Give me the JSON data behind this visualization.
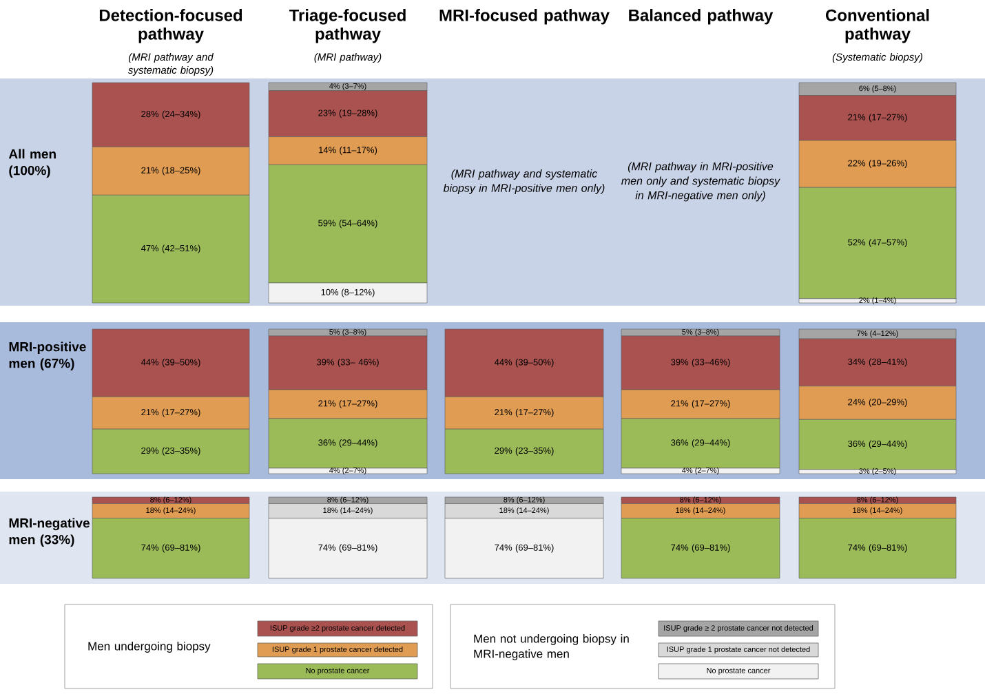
{
  "chart_data": [
    {
      "type": "bar",
      "stacked": true,
      "title": "Detection-focused pathway",
      "subtitle": "(MRI pathway and systematic biopsy)",
      "ylabel": "All men (100%)",
      "categories": [
        null
      ],
      "series": [
        {
          "color": "#9bbb59",
          "values": [
            47
          ],
          "value_labels": [
            "47% (42–51%)"
          ]
        },
        {
          "color": "#e09c52",
          "values": [
            21
          ],
          "value_labels": [
            "21% (18–25%)"
          ]
        },
        {
          "color": "#a9524f",
          "values": [
            28
          ],
          "value_labels": [
            "28% (24–34%)"
          ]
        }
      ]
    },
    {
      "type": "bar",
      "stacked": true,
      "title": "Triage-focused pathway",
      "subtitle": "(MRI pathway)",
      "categories": [
        null
      ],
      "series": [
        {
          "color": "#f2f2f2",
          "values": [
            10
          ],
          "value_labels": [
            "10% (8–12%)"
          ]
        },
        {
          "color": "#9bbb59",
          "values": [
            59
          ],
          "value_labels": [
            "59% (54–64%)"
          ]
        },
        {
          "color": "#e09c52",
          "values": [
            14
          ],
          "value_labels": [
            "14% (11–17%)"
          ]
        },
        {
          "color": "#a9524f",
          "values": [
            23
          ],
          "value_labels": [
            "23% (19–28%)"
          ]
        },
        {
          "color": "#a5a5a5",
          "values": [
            4
          ],
          "value_labels": [
            "4% (3–7%)"
          ]
        }
      ]
    },
    {
      "type": "other",
      "title": "MRI-focused pathway",
      "annotations": [
        "(MRI pathway and systematic biopsy in MRI-positive men only)"
      ]
    },
    {
      "type": "other",
      "title": "Balanced pathway",
      "annotations": [
        "(MRI pathway in MRI-positive men only and systematic biopsy in MRI-negative men only)"
      ]
    },
    {
      "type": "bar",
      "stacked": true,
      "title": "Conventional pathway",
      "subtitle": "(Systematic biopsy)",
      "categories": [
        null
      ],
      "series": [
        {
          "color": "#f2f2f2",
          "values": [
            2
          ],
          "value_labels": [
            "2% (1–4%)"
          ]
        },
        {
          "color": "#9bbb59",
          "values": [
            52
          ],
          "value_labels": [
            "52% (47–57%)"
          ]
        },
        {
          "color": "#e09c52",
          "values": [
            22
          ],
          "value_labels": [
            "22% (19–26%)"
          ]
        },
        {
          "color": "#a9524f",
          "values": [
            21
          ],
          "value_labels": [
            "21% (17–27%)"
          ]
        },
        {
          "color": "#a5a5a5",
          "values": [
            6
          ],
          "value_labels": [
            "6% (5–8%)"
          ]
        }
      ]
    },
    {
      "type": "bar",
      "stacked": true,
      "ylabel": "MRI-positive men (67%)",
      "categories": [
        null
      ],
      "series": [
        {
          "color": "#9bbb59",
          "values": [
            29
          ],
          "value_labels": [
            "29% (23–35%)"
          ]
        },
        {
          "color": "#e09c52",
          "values": [
            21
          ],
          "value_labels": [
            "21% (17–27%)"
          ]
        },
        {
          "color": "#a9524f",
          "values": [
            44
          ],
          "value_labels": [
            "44% (39–50%)"
          ]
        }
      ]
    },
    {
      "type": "bar",
      "stacked": true,
      "categories": [
        null
      ],
      "series": [
        {
          "color": "#f2f2f2",
          "values": [
            4
          ],
          "value_labels": [
            "4% (2–7%)"
          ]
        },
        {
          "color": "#9bbb59",
          "values": [
            36
          ],
          "value_labels": [
            "36% (29–44%)"
          ]
        },
        {
          "color": "#e09c52",
          "values": [
            21
          ],
          "value_labels": [
            "21% (17–27%)"
          ]
        },
        {
          "color": "#a9524f",
          "values": [
            39
          ],
          "value_labels": [
            "39% (33– 46%)"
          ]
        },
        {
          "color": "#a5a5a5",
          "values": [
            5
          ],
          "value_labels": [
            "5% (3–8%)"
          ]
        }
      ]
    },
    {
      "type": "bar",
      "stacked": true,
      "categories": [
        null
      ],
      "series": [
        {
          "color": "#9bbb59",
          "values": [
            29
          ],
          "value_labels": [
            "29% (23–35%)"
          ]
        },
        {
          "color": "#e09c52",
          "values": [
            21
          ],
          "value_labels": [
            "21% (17–27%)"
          ]
        },
        {
          "color": "#a9524f",
          "values": [
            44
          ],
          "value_labels": [
            "44% (39–50%)"
          ]
        }
      ]
    },
    {
      "type": "bar",
      "stacked": true,
      "categories": [
        null
      ],
      "series": [
        {
          "color": "#f2f2f2",
          "values": [
            4
          ],
          "value_labels": [
            "4% (2–7%)"
          ]
        },
        {
          "color": "#9bbb59",
          "values": [
            36
          ],
          "value_labels": [
            "36% (29–44%)"
          ]
        },
        {
          "color": "#e09c52",
          "values": [
            21
          ],
          "value_labels": [
            "21% (17–27%)"
          ]
        },
        {
          "color": "#a9524f",
          "values": [
            39
          ],
          "value_labels": [
            "39% (33–46%)"
          ]
        },
        {
          "color": "#a5a5a5",
          "values": [
            5
          ],
          "value_labels": [
            "5% (3–8%)"
          ]
        }
      ]
    },
    {
      "type": "bar",
      "stacked": true,
      "categories": [
        null
      ],
      "series": [
        {
          "color": "#f2f2f2",
          "values": [
            3
          ],
          "value_labels": [
            "3% (2–5%)"
          ]
        },
        {
          "color": "#9bbb59",
          "values": [
            36
          ],
          "value_labels": [
            "36% (29–44%)"
          ]
        },
        {
          "color": "#e09c52",
          "values": [
            24
          ],
          "value_labels": [
            "24% (20–29%)"
          ]
        },
        {
          "color": "#a9524f",
          "values": [
            34
          ],
          "value_labels": [
            "34% (28–41%)"
          ]
        },
        {
          "color": "#a5a5a5",
          "values": [
            7
          ],
          "value_labels": [
            "7% (4–12%)"
          ]
        }
      ]
    },
    {
      "type": "bar",
      "stacked": true,
      "ylabel": "MRI-negative men (33%)",
      "categories": [
        null
      ],
      "legend": "bottom",
      "legend_title": "Men undergoing biopsy",
      "series": [
        {
          "name": "No prostate cancer",
          "color": "#9bbb59",
          "values": [
            74
          ],
          "value_labels": [
            "74% (69–81%)"
          ]
        },
        {
          "name": "ISUP grade 1 prostate cancer detected",
          "color": "#e09c52",
          "values": [
            18
          ],
          "value_labels": [
            "18% (14–24%)"
          ]
        },
        {
          "name": "ISUP grade ≥2 prostate cancer detected",
          "color": "#a9524f",
          "values": [
            8
          ],
          "value_labels": [
            "8% (6–12%)"
          ]
        }
      ]
    },
    {
      "type": "bar",
      "stacked": true,
      "categories": [
        null
      ],
      "legend": "bottom",
      "legend_title": "Men not undergoing biopsy in MRI-negative men",
      "series": [
        {
          "name": "No prostate cancer",
          "color": "#f2f2f2",
          "values": [
            74
          ],
          "value_labels": [
            "74% (69–81%)"
          ]
        },
        {
          "name": "ISUP grade 1 prostate cancer not detected",
          "color": "#d9d9d9",
          "values": [
            18
          ],
          "value_labels": [
            "18% (14–24%)"
          ]
        },
        {
          "name": "ISUP grade ≥ 2 prostate cancer not detected",
          "color": "#a5a5a5",
          "values": [
            8
          ],
          "value_labels": [
            "8% (6–12%)"
          ]
        }
      ]
    },
    {
      "type": "bar",
      "stacked": true,
      "categories": [
        null
      ],
      "series": [
        {
          "color": "#f2f2f2",
          "values": [
            74
          ],
          "value_labels": [
            "74% (69–81%)"
          ]
        },
        {
          "color": "#d9d9d9",
          "values": [
            18
          ],
          "value_labels": [
            "18% (14–24%)"
          ]
        },
        {
          "color": "#a5a5a5",
          "values": [
            8
          ],
          "value_labels": [
            "8% (6–12%)"
          ]
        }
      ]
    },
    {
      "type": "bar",
      "stacked": true,
      "categories": [
        null
      ],
      "series": [
        {
          "color": "#9bbb59",
          "values": [
            74
          ],
          "value_labels": [
            "74% (69–81%)"
          ]
        },
        {
          "color": "#e09c52",
          "values": [
            18
          ],
          "value_labels": [
            "18% (14–24%)"
          ]
        },
        {
          "color": "#a9524f",
          "values": [
            8
          ],
          "value_labels": [
            "8% (6–12%)"
          ]
        }
      ]
    },
    {
      "type": "bar",
      "stacked": true,
      "categories": [
        null
      ],
      "series": [
        {
          "color": "#9bbb59",
          "values": [
            74
          ],
          "value_labels": [
            "74% (69–81%)"
          ]
        },
        {
          "color": "#e09c52",
          "values": [
            18
          ],
          "value_labels": [
            "18% (14–24%)"
          ]
        },
        {
          "color": "#a9524f",
          "values": [
            8
          ],
          "value_labels": [
            "8% (6–12%)"
          ]
        }
      ]
    }
  ]
}
